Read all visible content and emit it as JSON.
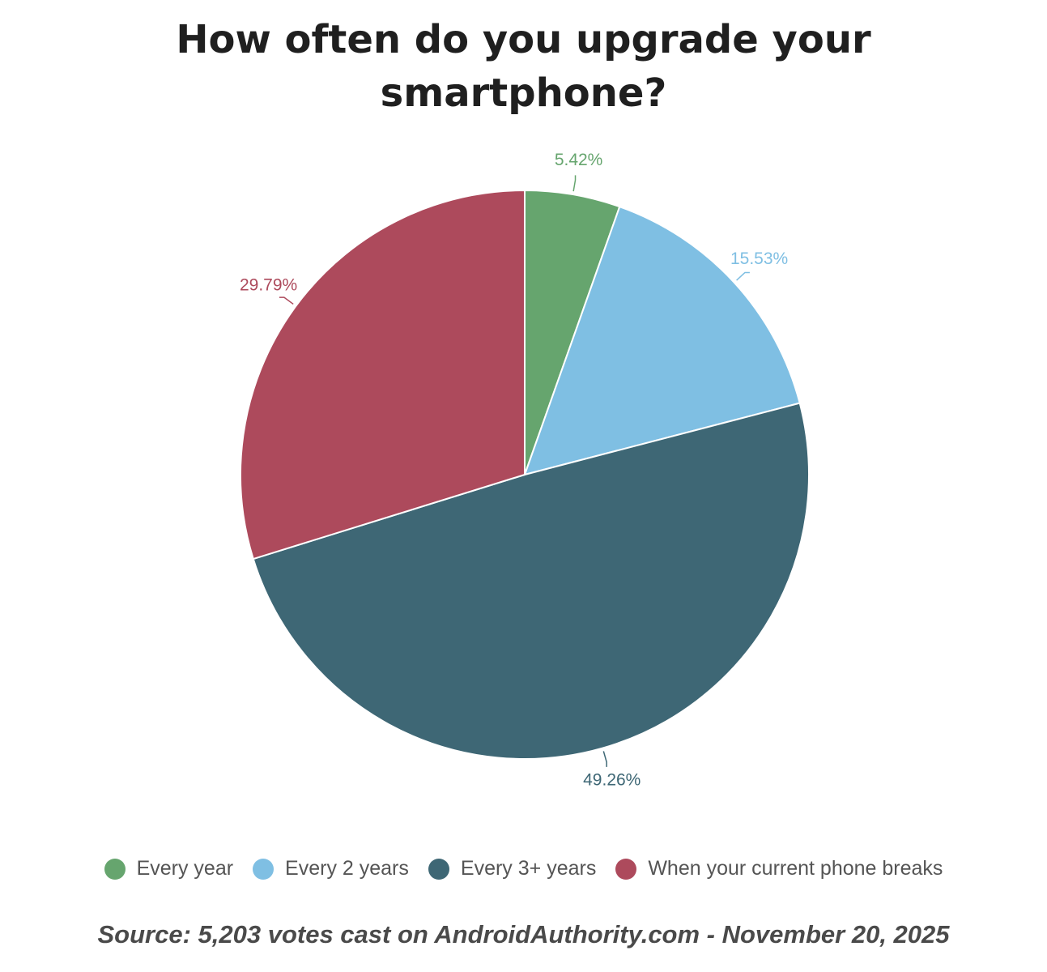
{
  "chart_data": {
    "type": "pie",
    "title": "How often do you upgrade your smartphone?",
    "title_lines": [
      "How often do you upgrade your",
      "smartphone?"
    ],
    "slices": [
      {
        "label": "Every year",
        "value": 5.42,
        "value_label": "5.42%",
        "color": "#66a56e"
      },
      {
        "label": "Every 2 years",
        "value": 15.53,
        "value_label": "15.53%",
        "color": "#7fbfe3"
      },
      {
        "label": "Every 3+ years",
        "value": 49.26,
        "value_label": "49.26%",
        "color": "#3e6775"
      },
      {
        "label": "When your current phone breaks",
        "value": 29.79,
        "value_label": "29.79%",
        "color": "#ad4a5c"
      }
    ],
    "legend_position": "bottom"
  },
  "source": "Source: 5,203 votes cast on AndroidAuthority.com - November 20, 2025"
}
